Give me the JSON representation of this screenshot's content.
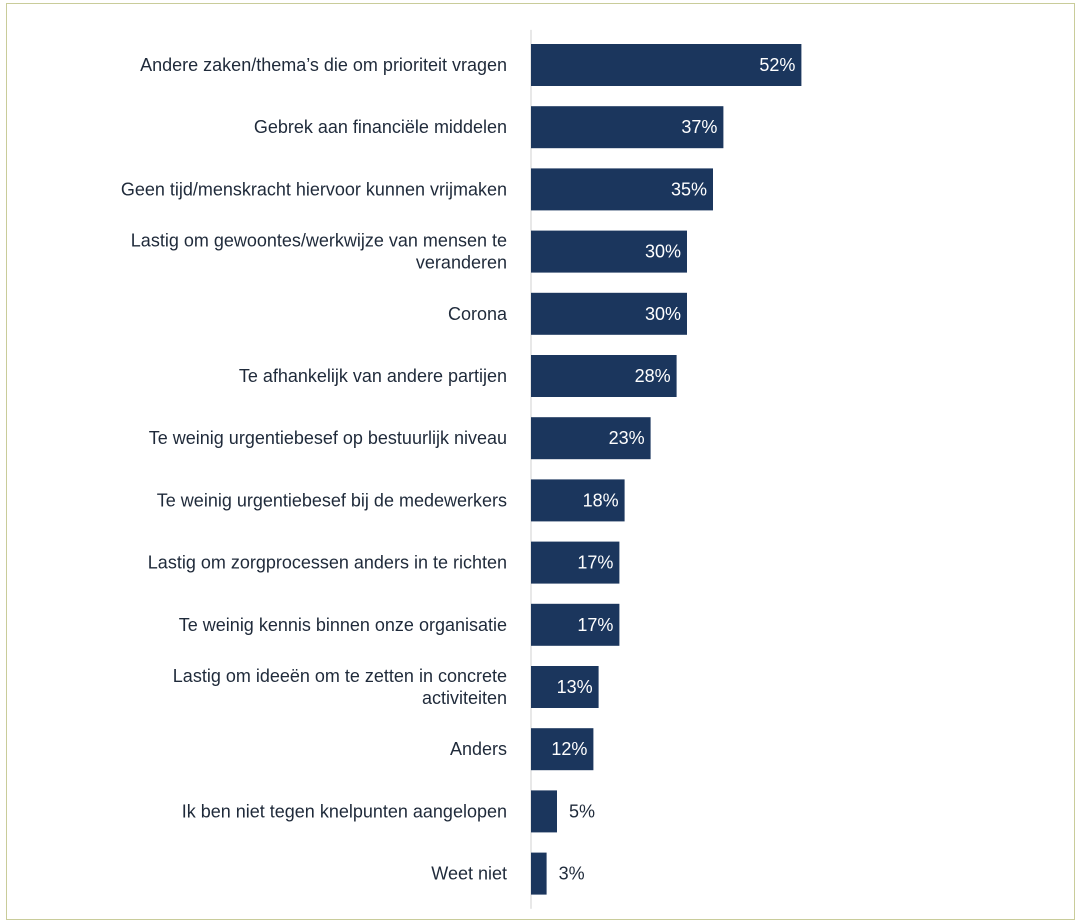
{
  "chart_data": {
    "type": "bar",
    "orientation": "horizontal",
    "unit": "%",
    "bar_color": "#1b365d",
    "categories": [
      [
        "Andere zaken/thema’s die om prioriteit vragen"
      ],
      [
        "Gebrek aan financiële middelen"
      ],
      [
        "Geen tijd/menskracht hiervoor kunnen vrijmaken"
      ],
      [
        "Lastig om gewoontes/werkwijze van mensen te",
        "veranderen"
      ],
      [
        "Corona"
      ],
      [
        "Te afhankelijk van andere partijen"
      ],
      [
        "Te weinig urgentiebesef op bestuurlijk niveau"
      ],
      [
        "Te weinig urgentiebesef bij de medewerkers"
      ],
      [
        "Lastig om zorgprocessen anders in te richten"
      ],
      [
        "Te weinig kennis binnen onze organisatie"
      ],
      [
        "Lastig om ideeën om te zetten in concrete",
        "activiteiten"
      ],
      [
        "Anders"
      ],
      [
        "Ik ben niet tegen knelpunten aangelopen"
      ],
      [
        "Weet niet"
      ]
    ],
    "values": [
      52,
      37,
      35,
      30,
      30,
      28,
      23,
      18,
      17,
      17,
      13,
      12,
      5,
      3
    ],
    "value_labels": [
      "52%",
      "37%",
      "35%",
      "30%",
      "30%",
      "28%",
      "23%",
      "18%",
      "17%",
      "17%",
      "13%",
      "12%",
      "5%",
      "3%"
    ],
    "title": "",
    "xlabel": "",
    "ylabel": "",
    "grid": false,
    "legend": "none"
  }
}
